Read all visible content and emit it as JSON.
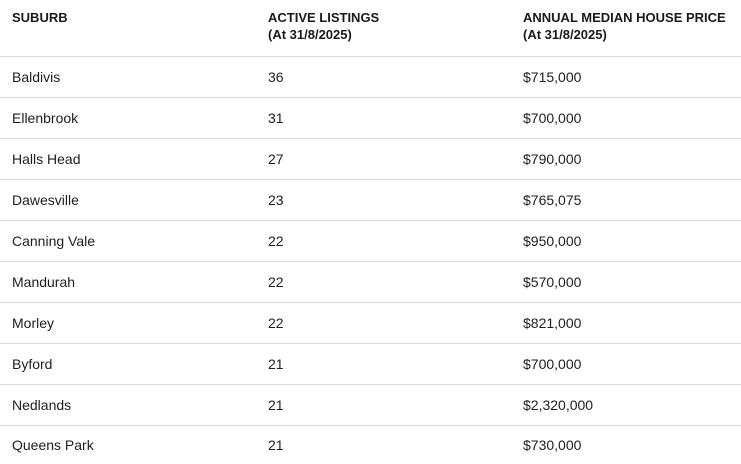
{
  "table": {
    "headers": [
      {
        "line1": "SUBURB",
        "line2": ""
      },
      {
        "line1": "ACTIVE LISTINGS",
        "line2": "(At 31/8/2025)"
      },
      {
        "line1": "ANNUAL MEDIAN HOUSE PRICE",
        "line2": "(At 31/8/2025)"
      }
    ],
    "rows": [
      {
        "suburb": "Baldivis",
        "listings": "36",
        "price": "$715,000"
      },
      {
        "suburb": "Ellenbrook",
        "listings": "31",
        "price": "$700,000"
      },
      {
        "suburb": "Halls Head",
        "listings": "27",
        "price": "$790,000"
      },
      {
        "suburb": "Dawesville",
        "listings": "23",
        "price": "$765,075"
      },
      {
        "suburb": "Canning Vale",
        "listings": "22",
        "price": "$950,000"
      },
      {
        "suburb": "Mandurah",
        "listings": "22",
        "price": "$570,000"
      },
      {
        "suburb": "Morley",
        "listings": "22",
        "price": "$821,000"
      },
      {
        "suburb": "Byford",
        "listings": "21",
        "price": "$700,000"
      },
      {
        "suburb": "Nedlands",
        "listings": "21",
        "price": "$2,320,000"
      },
      {
        "suburb": "Queens Park",
        "listings": "21",
        "price": "$730,000"
      }
    ]
  }
}
